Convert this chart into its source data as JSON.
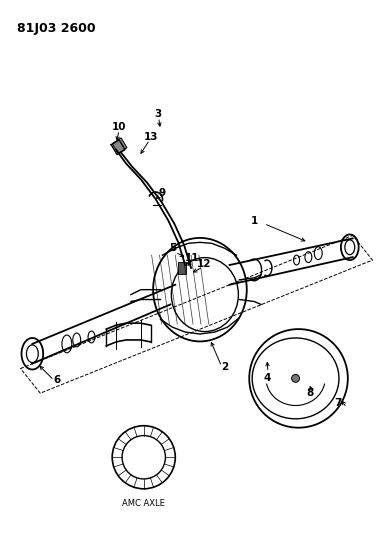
{
  "title": "81J03 2600",
  "background_color": "#ffffff",
  "text_color": "#000000",
  "line_color": "#000000",
  "amc_axle_label": "AMC AXLE",
  "figsize": [
    3.92,
    5.33
  ],
  "dpi": 100
}
